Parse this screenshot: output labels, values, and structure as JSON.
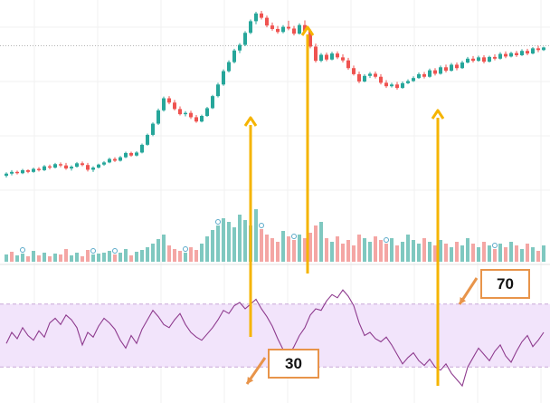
{
  "chart_data": [
    {
      "type": "candlestick",
      "panel": "price",
      "description_count": 100,
      "horizontal_reference_line": true,
      "candles": [
        [
          20.0,
          20.8,
          19.6,
          20.5
        ],
        [
          20.5,
          21.3,
          20.1,
          20.9
        ],
        [
          20.9,
          21.2,
          20.3,
          20.6
        ],
        [
          20.6,
          21.6,
          20.4,
          21.3
        ],
        [
          21.3,
          21.5,
          20.6,
          20.9
        ],
        [
          20.9,
          21.9,
          20.7,
          21.6
        ],
        [
          21.6,
          22.0,
          21.0,
          21.3
        ],
        [
          21.3,
          22.5,
          21.1,
          22.2
        ],
        [
          22.2,
          22.6,
          21.5,
          21.9
        ],
        [
          21.9,
          23.0,
          21.7,
          22.7
        ],
        [
          22.7,
          23.1,
          22.0,
          22.4
        ],
        [
          22.4,
          23.0,
          21.4,
          21.7
        ],
        [
          21.7,
          22.4,
          21.2,
          22.1
        ],
        [
          22.1,
          23.2,
          21.9,
          22.9
        ],
        [
          22.9,
          23.3,
          22.2,
          22.5
        ],
        [
          22.5,
          23.0,
          21.0,
          21.4
        ],
        [
          21.4,
          22.2,
          20.9,
          21.9
        ],
        [
          21.9,
          22.8,
          21.7,
          22.6
        ],
        [
          22.6,
          23.4,
          22.3,
          23.1
        ],
        [
          23.1,
          24.2,
          22.9,
          23.9
        ],
        [
          23.9,
          24.3,
          23.2,
          23.5
        ],
        [
          23.5,
          24.6,
          23.3,
          24.3
        ],
        [
          24.3,
          25.6,
          24.1,
          25.3
        ],
        [
          25.3,
          25.6,
          24.4,
          24.7
        ],
        [
          24.7,
          25.7,
          24.5,
          25.4
        ],
        [
          25.4,
          27.5,
          25.2,
          27.2
        ],
        [
          27.2,
          29.8,
          27.0,
          29.5
        ],
        [
          29.5,
          32.4,
          29.2,
          32.1
        ],
        [
          32.1,
          35.6,
          31.8,
          35.2
        ],
        [
          35.2,
          38.4,
          34.9,
          38.0
        ],
        [
          38.0,
          38.5,
          36.6,
          37.0
        ],
        [
          37.0,
          37.6,
          35.2,
          35.5
        ],
        [
          35.5,
          36.1,
          34.0,
          34.3
        ],
        [
          34.3,
          35.0,
          33.8,
          34.6
        ],
        [
          34.6,
          35.1,
          33.2,
          33.6
        ],
        [
          33.6,
          34.1,
          32.3,
          32.6
        ],
        [
          32.6,
          34.2,
          32.4,
          33.9
        ],
        [
          33.9,
          36.0,
          33.7,
          35.7
        ],
        [
          35.7,
          38.8,
          35.5,
          38.5
        ],
        [
          38.5,
          41.6,
          38.2,
          41.2
        ],
        [
          41.2,
          44.7,
          40.9,
          44.3
        ],
        [
          44.3,
          46.8,
          44.0,
          46.4
        ],
        [
          46.4,
          49.5,
          46.1,
          49.1
        ],
        [
          49.1,
          50.8,
          48.5,
          50.4
        ],
        [
          50.4,
          53.6,
          50.1,
          53.2
        ],
        [
          53.2,
          56.3,
          52.9,
          55.9
        ],
        [
          55.9,
          58.1,
          55.2,
          57.7
        ],
        [
          57.7,
          58.3,
          56.3,
          56.7
        ],
        [
          56.7,
          57.2,
          54.5,
          54.9
        ],
        [
          54.9,
          55.6,
          53.7,
          54.1
        ],
        [
          54.1,
          54.8,
          53.0,
          53.4
        ],
        [
          53.4,
          55.0,
          53.1,
          54.6
        ],
        [
          54.6,
          56.0,
          53.8,
          54.2
        ],
        [
          54.2,
          54.8,
          52.6,
          53.0
        ],
        [
          53.0,
          55.4,
          52.8,
          55.0
        ],
        [
          55.0,
          56.1,
          53.2,
          53.6
        ],
        [
          53.6,
          54.1,
          49.6,
          50.0
        ],
        [
          50.0,
          50.7,
          46.3,
          46.7
        ],
        [
          46.7,
          48.5,
          46.4,
          48.1
        ],
        [
          48.1,
          48.6,
          46.6,
          47.0
        ],
        [
          47.0,
          48.8,
          46.8,
          48.4
        ],
        [
          48.4,
          48.9,
          47.1,
          47.5
        ],
        [
          47.5,
          48.2,
          46.3,
          46.8
        ],
        [
          46.8,
          47.4,
          44.6,
          45.0
        ],
        [
          45.0,
          45.6,
          43.3,
          43.6
        ],
        [
          43.6,
          44.2,
          41.5,
          41.9
        ],
        [
          41.9,
          43.6,
          41.7,
          43.2
        ],
        [
          43.2,
          44.1,
          42.7,
          43.7
        ],
        [
          43.7,
          44.2,
          42.6,
          43.0
        ],
        [
          43.0,
          43.6,
          41.2,
          41.6
        ],
        [
          41.6,
          42.2,
          40.4,
          40.8
        ],
        [
          40.8,
          41.6,
          40.5,
          41.2
        ],
        [
          41.2,
          41.8,
          40.0,
          40.4
        ],
        [
          40.4,
          41.9,
          40.2,
          41.5
        ],
        [
          41.5,
          42.4,
          41.3,
          42.0
        ],
        [
          42.0,
          43.1,
          41.8,
          42.7
        ],
        [
          42.7,
          44.0,
          42.5,
          43.6
        ],
        [
          43.6,
          44.1,
          42.6,
          43.0
        ],
        [
          43.0,
          44.9,
          42.8,
          44.5
        ],
        [
          44.5,
          45.0,
          43.3,
          43.7
        ],
        [
          43.7,
          45.6,
          43.5,
          45.2
        ],
        [
          45.2,
          45.8,
          44.0,
          44.4
        ],
        [
          44.4,
          46.2,
          44.2,
          45.8
        ],
        [
          45.8,
          46.3,
          44.5,
          45.0
        ],
        [
          45.0,
          46.7,
          44.8,
          46.3
        ],
        [
          46.3,
          47.6,
          46.1,
          47.2
        ],
        [
          47.2,
          47.8,
          46.3,
          46.7
        ],
        [
          46.7,
          47.9,
          46.5,
          47.5
        ],
        [
          47.5,
          48.0,
          46.1,
          46.5
        ],
        [
          46.5,
          47.9,
          46.3,
          47.6
        ],
        [
          47.6,
          48.2,
          46.8,
          47.2
        ],
        [
          47.2,
          48.7,
          47.0,
          48.3
        ],
        [
          48.3,
          48.9,
          47.3,
          47.7
        ],
        [
          47.7,
          48.8,
          47.5,
          48.5
        ],
        [
          48.5,
          49.0,
          47.6,
          48.0
        ],
        [
          48.0,
          49.4,
          47.8,
          49.0
        ],
        [
          49.0,
          49.5,
          48.0,
          48.4
        ],
        [
          48.4,
          49.9,
          48.2,
          49.6
        ],
        [
          49.6,
          50.2,
          48.7,
          49.2
        ],
        [
          49.2,
          50.0,
          49.0,
          49.8
        ]
      ],
      "reference_line_value": 50.2,
      "colors": {
        "up": "#26a69a",
        "down": "#ef5350",
        "reference_line": "#9e9e9e"
      }
    },
    {
      "type": "bar",
      "panel": "volume",
      "values": [
        8,
        11,
        7,
        9,
        6,
        12,
        7,
        10,
        6,
        9,
        8,
        14,
        7,
        10,
        6,
        13,
        8,
        9,
        10,
        12,
        8,
        10,
        14,
        7,
        11,
        13,
        16,
        20,
        25,
        30,
        18,
        14,
        12,
        10,
        16,
        13,
        20,
        28,
        35,
        40,
        48,
        44,
        38,
        52,
        46,
        40,
        58,
        36,
        30,
        26,
        22,
        34,
        28,
        24,
        30,
        26,
        32,
        40,
        44,
        26,
        22,
        28,
        20,
        24,
        18,
        30,
        26,
        22,
        28,
        24,
        20,
        26,
        18,
        22,
        30,
        24,
        20,
        26,
        22,
        18,
        24,
        20,
        16,
        22,
        18,
        26,
        20,
        16,
        22,
        18,
        14,
        20,
        16,
        22,
        18,
        14,
        20,
        16,
        12,
        18
      ],
      "up_flags": [
        1,
        0,
        1,
        1,
        0,
        1,
        0,
        1,
        0,
        1,
        0,
        0,
        1,
        1,
        0,
        0,
        1,
        1,
        1,
        1,
        0,
        1,
        1,
        0,
        1,
        1,
        1,
        1,
        1,
        1,
        0,
        0,
        0,
        1,
        0,
        0,
        1,
        1,
        1,
        1,
        1,
        1,
        1,
        1,
        1,
        1,
        1,
        0,
        0,
        0,
        0,
        1,
        0,
        0,
        1,
        0,
        0,
        0,
        1,
        0,
        1,
        0,
        0,
        0,
        0,
        0,
        1,
        1,
        0,
        0,
        0,
        1,
        0,
        1,
        1,
        1,
        1,
        0,
        1,
        0,
        1,
        0,
        1,
        0,
        1,
        1,
        0,
        1,
        0,
        1,
        0,
        1,
        0,
        1,
        0,
        1,
        0,
        1,
        0,
        1
      ],
      "colors": {
        "up": "#7fc8c0",
        "down": "#f4a6a4"
      }
    },
    {
      "type": "line",
      "panel": "rsi",
      "series": [
        {
          "values": [
            45,
            52,
            48,
            55,
            50,
            47,
            53,
            49,
            58,
            61,
            57,
            63,
            60,
            55,
            44,
            52,
            49,
            56,
            61,
            58,
            54,
            47,
            42,
            50,
            45,
            54,
            60,
            66,
            62,
            57,
            55,
            60,
            64,
            57,
            52,
            49,
            47,
            51,
            55,
            60,
            66,
            64,
            69,
            71,
            67,
            70,
            73,
            67,
            62,
            56,
            48,
            41,
            37,
            43,
            50,
            55,
            63,
            67,
            66,
            72,
            76,
            74,
            79,
            75,
            69,
            58,
            50,
            52,
            48,
            46,
            49,
            44,
            38,
            32,
            36,
            39,
            34,
            31,
            35,
            30,
            28,
            32,
            26,
            22,
            18,
            30,
            36,
            42,
            38,
            34,
            40,
            44,
            37,
            33,
            40,
            46,
            50,
            43,
            47,
            52
          ]
        }
      ],
      "yrange": [
        10,
        90
      ],
      "band": {
        "upper": 70,
        "lower": 30
      },
      "colors": {
        "line": "#8e3b8e",
        "band_fill": "#f2e4fb",
        "band_border": "#c8a8d8"
      }
    }
  ],
  "annotations": {
    "label_70": "70",
    "label_30": "30",
    "arrow_color": "#f5b400",
    "label_border_color": "#e8944a"
  }
}
